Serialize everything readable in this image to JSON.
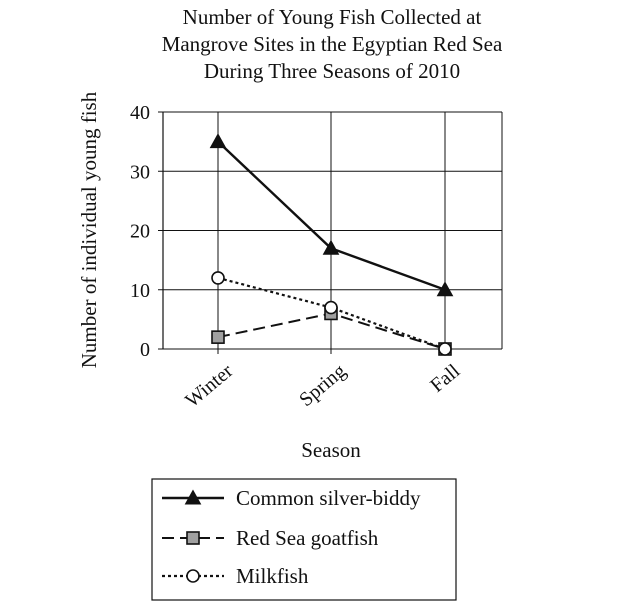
{
  "chart_data": {
    "type": "line",
    "title": [
      "Number of Young Fish Collected at",
      "Mangrove Sites in the Egyptian Red Sea",
      "During Three Seasons of 2010"
    ],
    "xlabel": "Season",
    "ylabel": "Number of individual young fish",
    "categories": [
      "Winter",
      "Spring",
      "Fall"
    ],
    "ylim": [
      0,
      40
    ],
    "yticks": [
      "0",
      "10",
      "20",
      "30",
      "40"
    ],
    "grid": true,
    "legend_position": "bottom",
    "series": [
      {
        "name": "Common silver-biddy",
        "values": [
          35,
          17,
          10
        ],
        "marker": "triangle",
        "line": "solid"
      },
      {
        "name": "Red Sea goatfish",
        "values": [
          2,
          6,
          0
        ],
        "marker": "square",
        "line": "dashed"
      },
      {
        "name": "Milkfish",
        "values": [
          12,
          7,
          0
        ],
        "marker": "circle",
        "line": "dotted"
      }
    ]
  }
}
